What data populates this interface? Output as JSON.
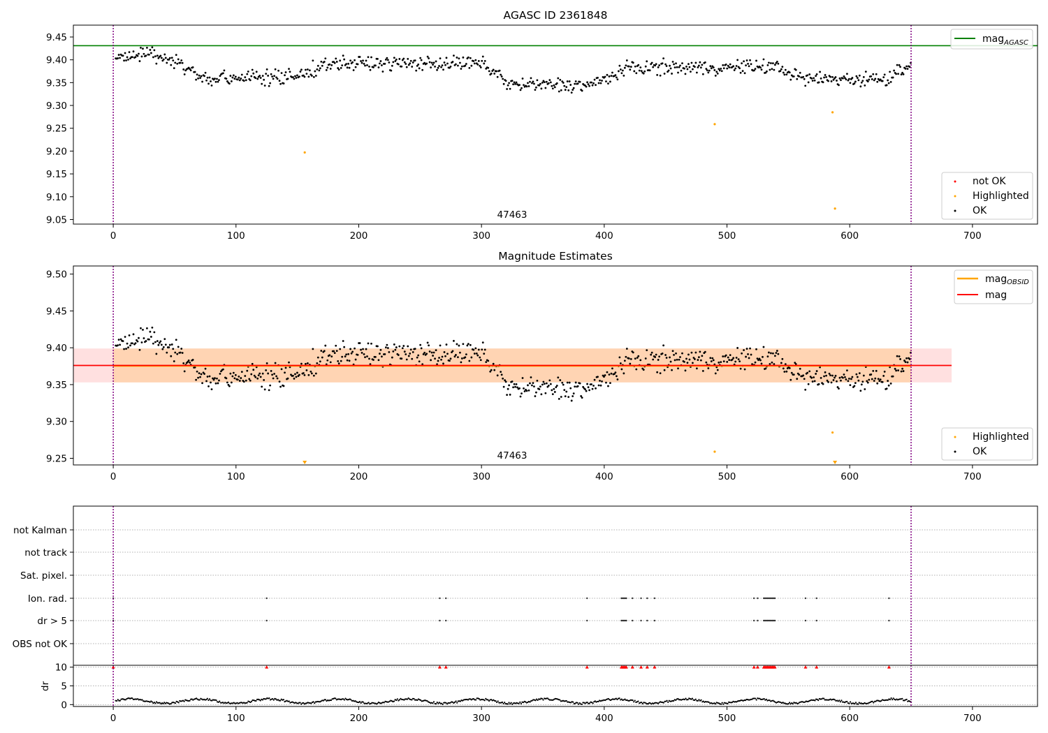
{
  "chart_data": [
    {
      "type": "scatter",
      "title": "AGASC ID 2361848",
      "annotation": "47463",
      "xlim": [
        -32.5,
        753
      ],
      "ylim": [
        9.04,
        9.476
      ],
      "xticks": [
        0,
        100,
        200,
        300,
        400,
        500,
        600,
        700
      ],
      "yticks": [
        9.05,
        9.1,
        9.15,
        9.2,
        9.25,
        9.3,
        9.35,
        9.4,
        9.45
      ],
      "reference_lines": [
        {
          "name": "magAGASC",
          "label_main": "mag",
          "label_sub": "AGASC",
          "y": 9.431,
          "color": "#008000"
        }
      ],
      "vlines": [
        {
          "x": 0,
          "color": "#800080",
          "style": "dotted"
        },
        {
          "x": 650,
          "color": "#800080",
          "style": "dotted"
        }
      ],
      "highlighted": [
        [
          156,
          9.197
        ],
        [
          490,
          9.259
        ],
        [
          586,
          9.285
        ],
        [
          588,
          9.074
        ]
      ],
      "legends": [
        {
          "position": "top-right",
          "entries": [
            {
              "label": "mag",
              "sub": "AGASC",
              "kind": "line",
              "color": "#008000"
            }
          ]
        },
        {
          "position": "bottom-right",
          "entries": [
            {
              "label": "not OK",
              "kind": "marker",
              "color": "#ff0000"
            },
            {
              "label": "Highlighted",
              "kind": "marker",
              "color": "#ffa500"
            },
            {
              "label": "OK",
              "kind": "marker",
              "color": "#000000"
            }
          ]
        }
      ]
    },
    {
      "type": "scatter",
      "title": "Magnitude Estimates",
      "annotation": "47463",
      "xlim": [
        -32.5,
        753
      ],
      "ylim": [
        9.241,
        9.511
      ],
      "xticks": [
        0,
        100,
        200,
        300,
        400,
        500,
        600,
        700
      ],
      "yticks": [
        9.25,
        9.3,
        9.35,
        9.4,
        9.45,
        9.5
      ],
      "reference_lines": [
        {
          "name": "magOBSID",
          "y": 9.3755,
          "x_range": [
            0,
            650
          ],
          "color": "#ffa500"
        },
        {
          "name": "mag",
          "y": 9.376,
          "x_range": [
            -32.5,
            683
          ],
          "color": "#ff0000"
        }
      ],
      "bands": [
        {
          "y_range": [
            9.353,
            9.399
          ],
          "x_range": [
            -32.5,
            683
          ],
          "color": "#ff0000",
          "alpha": 0.12
        },
        {
          "y_range": [
            9.353,
            9.399
          ],
          "x_range": [
            0,
            650
          ],
          "color": "#ffa500",
          "alpha": 0.2
        }
      ],
      "vlines": [
        {
          "x": 0,
          "color": "#800080",
          "style": "dotted"
        },
        {
          "x": 650,
          "color": "#800080",
          "style": "dotted"
        }
      ],
      "highlighted": [
        [
          490,
          9.259
        ],
        [
          586,
          9.285
        ]
      ],
      "out_of_range_markers": [
        156,
        588
      ],
      "legends": [
        {
          "position": "top-right",
          "entries": [
            {
              "label": "mag",
              "sub": "OBSID",
              "kind": "line",
              "color": "#ffa500"
            },
            {
              "label": "mag",
              "kind": "line",
              "color": "#ff0000"
            }
          ]
        },
        {
          "position": "bottom-right",
          "entries": [
            {
              "label": "Highlighted",
              "kind": "marker",
              "color": "#ffa500"
            },
            {
              "label": "OK",
              "kind": "marker",
              "color": "#000000"
            }
          ]
        }
      ]
    },
    {
      "type": "scatter",
      "title": "",
      "xlim": [
        -32.5,
        753
      ],
      "xticks": [
        0,
        100,
        200,
        300,
        400,
        500,
        600,
        700
      ],
      "flag_rows": [
        "not Kalman",
        "not track",
        "Sat. pixel.",
        "Ion. rad.",
        "dr > 5",
        "OBS not OK"
      ],
      "flag_events": [
        0,
        125,
        266,
        271,
        386,
        414,
        415,
        416,
        417,
        418,
        423,
        430,
        435,
        441,
        522,
        525,
        530,
        531,
        532,
        533,
        534,
        535,
        536,
        537,
        538,
        539,
        564,
        573,
        632
      ],
      "dr_panel": {
        "ylabel": "dr",
        "ylim": [
          -0.5,
          10.5
        ],
        "yticks": [
          0,
          5,
          10
        ],
        "threshold": 10,
        "note": "dr values approximately 0.5–2 with red markers at 10 for flagged events"
      },
      "vlines": [
        {
          "x": 0,
          "color": "#800080",
          "style": "dotted"
        },
        {
          "x": 650,
          "color": "#800080",
          "style": "dotted"
        }
      ]
    }
  ]
}
